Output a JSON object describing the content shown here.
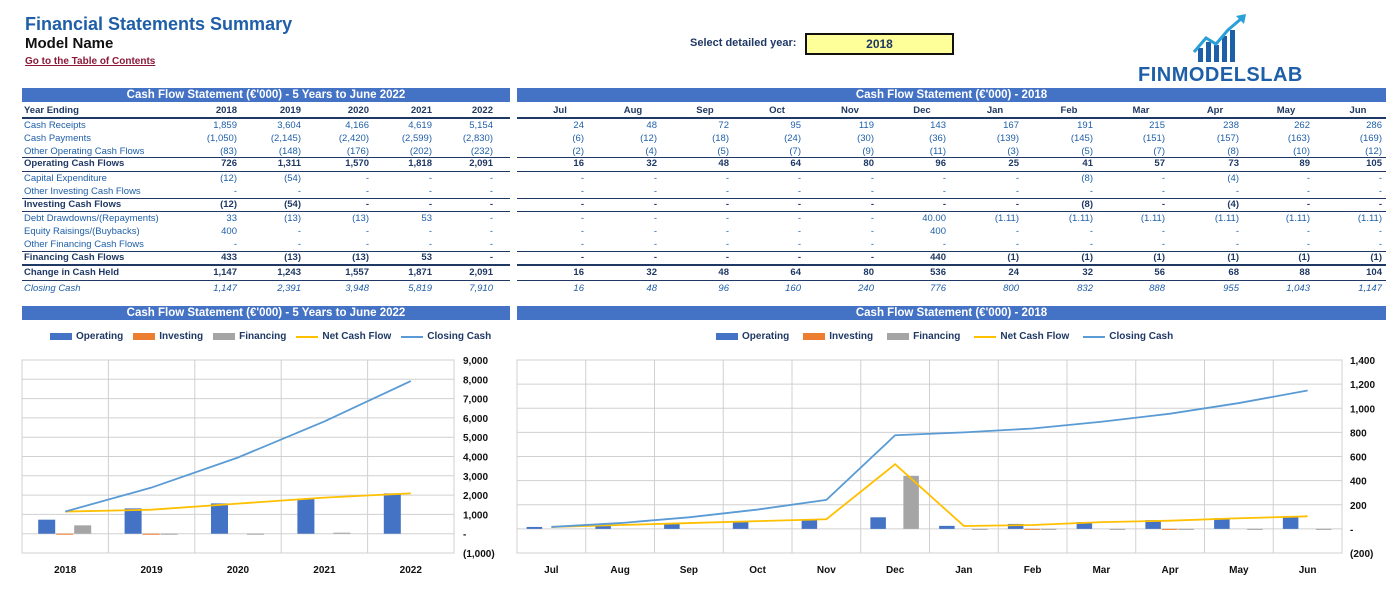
{
  "header": {
    "title": "Financial Statements Summary",
    "model_name": "Model Name",
    "toc_link": "Go to the Table of Contents",
    "select_label": "Select detailed year:",
    "selected_year": "2018",
    "logo_text": "FINMODELSLAB"
  },
  "colors": {
    "banner": "#4472c4",
    "operating": "#4472c4",
    "investing": "#ed7d31",
    "financing": "#a5a5a5",
    "net": "#ffc000",
    "closing": "#5b9bd5"
  },
  "annual_table": {
    "banner": "Cash Flow Statement (€'000) - 5 Years to June 2022",
    "header_label": "Year Ending",
    "years": [
      "2018",
      "2019",
      "2020",
      "2021",
      "2022"
    ],
    "rows": [
      {
        "label": "Cash Receipts",
        "values": [
          "1,859",
          "3,604",
          "4,166",
          "4,619",
          "5,154"
        ],
        "style": ""
      },
      {
        "label": "Cash Payments",
        "values": [
          "(1,050)",
          "(2,145)",
          "(2,420)",
          "(2,599)",
          "(2,830)"
        ],
        "style": ""
      },
      {
        "label": "Other Operating Cash Flows",
        "values": [
          "(83)",
          "(148)",
          "(176)",
          "(202)",
          "(232)"
        ],
        "style": ""
      },
      {
        "label": "Operating Cash Flows",
        "values": [
          "726",
          "1,311",
          "1,570",
          "1,818",
          "2,091"
        ],
        "style": "bold"
      },
      {
        "label": "Capital Expenditure",
        "values": [
          "(12)",
          "(54)",
          "-",
          "-",
          "-"
        ],
        "style": ""
      },
      {
        "label": "Other Investing Cash Flows",
        "values": [
          "-",
          "-",
          "-",
          "-",
          "-"
        ],
        "style": ""
      },
      {
        "label": "Investing Cash Flows",
        "values": [
          "(12)",
          "(54)",
          "-",
          "-",
          "-"
        ],
        "style": "bold"
      },
      {
        "label": "Debt Drawdowns/(Repayments)",
        "values": [
          "33",
          "(13)",
          "(13)",
          "53",
          "-"
        ],
        "style": ""
      },
      {
        "label": "Equity Raisings/(Buybacks)",
        "values": [
          "400",
          "-",
          "-",
          "-",
          "-"
        ],
        "style": ""
      },
      {
        "label": "Other Financing Cash Flows",
        "values": [
          "-",
          "-",
          "-",
          "-",
          "-"
        ],
        "style": ""
      },
      {
        "label": "Financing Cash Flows",
        "values": [
          "433",
          "(13)",
          "(13)",
          "53",
          "-"
        ],
        "style": "bold"
      },
      {
        "label": "Change in Cash Held",
        "values": [
          "1,147",
          "1,243",
          "1,557",
          "1,871",
          "2,091"
        ],
        "style": "bold"
      },
      {
        "label": "Closing Cash",
        "values": [
          "1,147",
          "2,391",
          "3,948",
          "5,819",
          "7,910"
        ],
        "style": "ital"
      }
    ]
  },
  "monthly_table": {
    "banner": "Cash Flow Statement (€'000) - 2018",
    "months": [
      "Jul",
      "Aug",
      "Sep",
      "Oct",
      "Nov",
      "Dec",
      "Jan",
      "Feb",
      "Mar",
      "Apr",
      "May",
      "Jun"
    ],
    "rows": [
      {
        "values": [
          "24",
          "48",
          "72",
          "95",
          "119",
          "143",
          "167",
          "191",
          "215",
          "238",
          "262",
          "286"
        ],
        "style": ""
      },
      {
        "values": [
          "(6)",
          "(12)",
          "(18)",
          "(24)",
          "(30)",
          "(36)",
          "(139)",
          "(145)",
          "(151)",
          "(157)",
          "(163)",
          "(169)"
        ],
        "style": ""
      },
      {
        "values": [
          "(2)",
          "(4)",
          "(5)",
          "(7)",
          "(9)",
          "(11)",
          "(3)",
          "(5)",
          "(7)",
          "(8)",
          "(10)",
          "(12)"
        ],
        "style": ""
      },
      {
        "values": [
          "16",
          "32",
          "48",
          "64",
          "80",
          "96",
          "25",
          "41",
          "57",
          "73",
          "89",
          "105"
        ],
        "style": "bold"
      },
      {
        "values": [
          "-",
          "-",
          "-",
          "-",
          "-",
          "-",
          "-",
          "(8)",
          "-",
          "(4)",
          "-",
          "-"
        ],
        "style": ""
      },
      {
        "values": [
          "-",
          "-",
          "-",
          "-",
          "-",
          "-",
          "-",
          "-",
          "-",
          "-",
          "-",
          "-"
        ],
        "style": ""
      },
      {
        "values": [
          "-",
          "-",
          "-",
          "-",
          "-",
          "-",
          "-",
          "(8)",
          "-",
          "(4)",
          "-",
          "-"
        ],
        "style": "bold"
      },
      {
        "values": [
          "-",
          "-",
          "-",
          "-",
          "-",
          "40.00",
          "(1.11)",
          "(1.11)",
          "(1.11)",
          "(1.11)",
          "(1.11)",
          "(1.11)"
        ],
        "style": ""
      },
      {
        "values": [
          "-",
          "-",
          "-",
          "-",
          "-",
          "400",
          "-",
          "-",
          "-",
          "-",
          "-",
          "-"
        ],
        "style": ""
      },
      {
        "values": [
          "-",
          "-",
          "-",
          "-",
          "-",
          "-",
          "-",
          "-",
          "-",
          "-",
          "-",
          "-"
        ],
        "style": ""
      },
      {
        "values": [
          "-",
          "-",
          "-",
          "-",
          "-",
          "440",
          "(1)",
          "(1)",
          "(1)",
          "(1)",
          "(1)",
          "(1)"
        ],
        "style": "bold"
      },
      {
        "values": [
          "16",
          "32",
          "48",
          "64",
          "80",
          "536",
          "24",
          "32",
          "56",
          "68",
          "88",
          "104"
        ],
        "style": "bold"
      },
      {
        "values": [
          "16",
          "48",
          "96",
          "160",
          "240",
          "776",
          "800",
          "832",
          "888",
          "955",
          "1,043",
          "1,147"
        ],
        "style": "ital"
      }
    ]
  },
  "chart_data": [
    {
      "type": "bar",
      "title": "Cash Flow Statement (€'000) - 5 Years to June 2022",
      "categories": [
        "2018",
        "2019",
        "2020",
        "2021",
        "2022"
      ],
      "ylim": [
        -1000,
        9000
      ],
      "yticks": [
        "9,000",
        "8,000",
        "7,000",
        "6,000",
        "5,000",
        "4,000",
        "3,000",
        "2,000",
        "1,000",
        "-",
        "(1,000)"
      ],
      "legend": "top",
      "grid": true,
      "series": [
        {
          "name": "Operating",
          "kind": "bar",
          "values": [
            726,
            1311,
            1570,
            1818,
            2091
          ]
        },
        {
          "name": "Investing",
          "kind": "bar",
          "values": [
            -12,
            -54,
            0,
            0,
            0
          ]
        },
        {
          "name": "Financing",
          "kind": "bar",
          "values": [
            433,
            -13,
            -13,
            53,
            0
          ]
        },
        {
          "name": "Net Cash Flow",
          "kind": "line",
          "values": [
            1147,
            1243,
            1557,
            1871,
            2091
          ]
        },
        {
          "name": "Closing Cash",
          "kind": "line",
          "values": [
            1147,
            2391,
            3948,
            5819,
            7910
          ]
        }
      ]
    },
    {
      "type": "bar",
      "title": "Cash Flow Statement (€'000) - 2018",
      "categories": [
        "Jul",
        "Aug",
        "Sep",
        "Oct",
        "Nov",
        "Dec",
        "Jan",
        "Feb",
        "Mar",
        "Apr",
        "May",
        "Jun"
      ],
      "ylim": [
        -200,
        1400
      ],
      "yticks": [
        "1,400",
        "1,200",
        "1,000",
        "800",
        "600",
        "400",
        "200",
        "-",
        "(200)"
      ],
      "legend": "top",
      "grid": true,
      "series": [
        {
          "name": "Operating",
          "kind": "bar",
          "values": [
            16,
            32,
            48,
            64,
            80,
            96,
            25,
            41,
            57,
            73,
            89,
            105
          ]
        },
        {
          "name": "Investing",
          "kind": "bar",
          "values": [
            0,
            0,
            0,
            0,
            0,
            0,
            0,
            -8,
            0,
            -4,
            0,
            0
          ]
        },
        {
          "name": "Financing",
          "kind": "bar",
          "values": [
            0,
            0,
            0,
            0,
            0,
            440,
            -1,
            -1,
            -1,
            -1,
            -1,
            -1
          ]
        },
        {
          "name": "Net Cash Flow",
          "kind": "line",
          "values": [
            16,
            32,
            48,
            64,
            80,
            536,
            24,
            32,
            56,
            68,
            88,
            104
          ]
        },
        {
          "name": "Closing Cash",
          "kind": "line",
          "values": [
            16,
            48,
            96,
            160,
            240,
            776,
            800,
            832,
            888,
            955,
            1043,
            1147
          ]
        }
      ]
    }
  ]
}
